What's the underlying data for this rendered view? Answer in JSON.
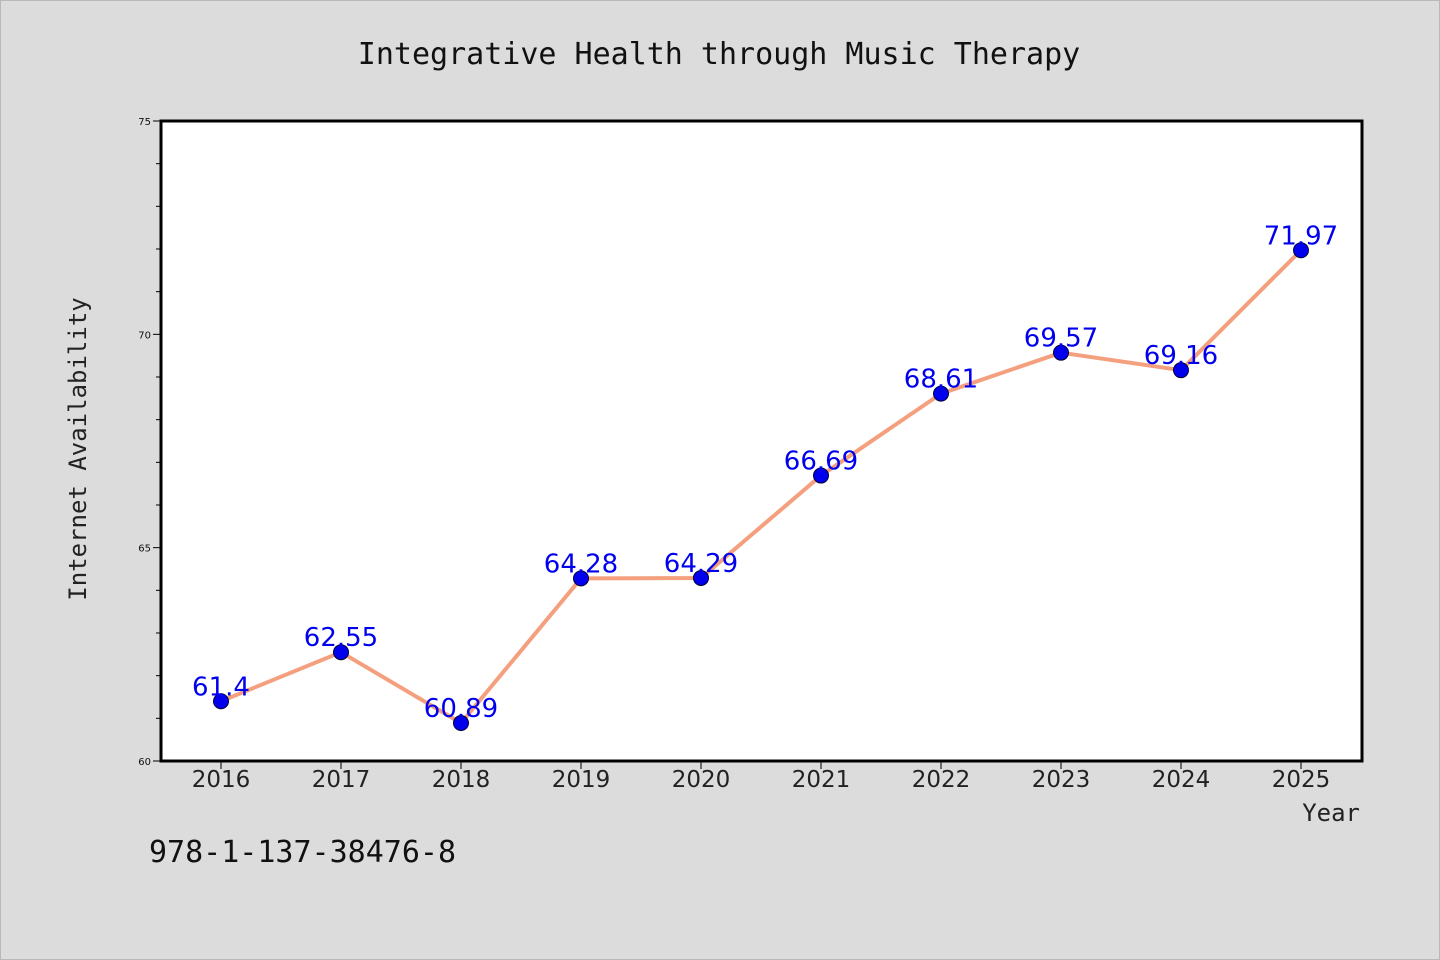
{
  "chart_data": {
    "type": "line",
    "title": "Integrative Health through Music Therapy",
    "xlabel": "Year",
    "ylabel": "Internet Availability",
    "categories": [
      "2016",
      "2017",
      "2018",
      "2019",
      "2020",
      "2021",
      "2022",
      "2023",
      "2024",
      "2025"
    ],
    "values": [
      61.4,
      62.55,
      60.89,
      64.28,
      64.29,
      66.69,
      68.61,
      69.57,
      69.16,
      71.97
    ],
    "data_labels": [
      "61.4",
      "62.55",
      "60.89",
      "64.28",
      "64.29",
      "66.69",
      "68.61",
      "69.57",
      "69.16",
      "71.97"
    ],
    "ylim": [
      60,
      75
    ],
    "yticks": [
      60,
      65,
      70,
      75
    ],
    "grid": false,
    "line_color": "#f4a07e",
    "marker_color": "#0000ee",
    "label_color": "#0000ee"
  },
  "footer": {
    "code": "978-1-137-38476-8"
  },
  "colors": {
    "background": "#dcdcdc",
    "plot_area": "#ffffff",
    "axis": "#000000"
  }
}
